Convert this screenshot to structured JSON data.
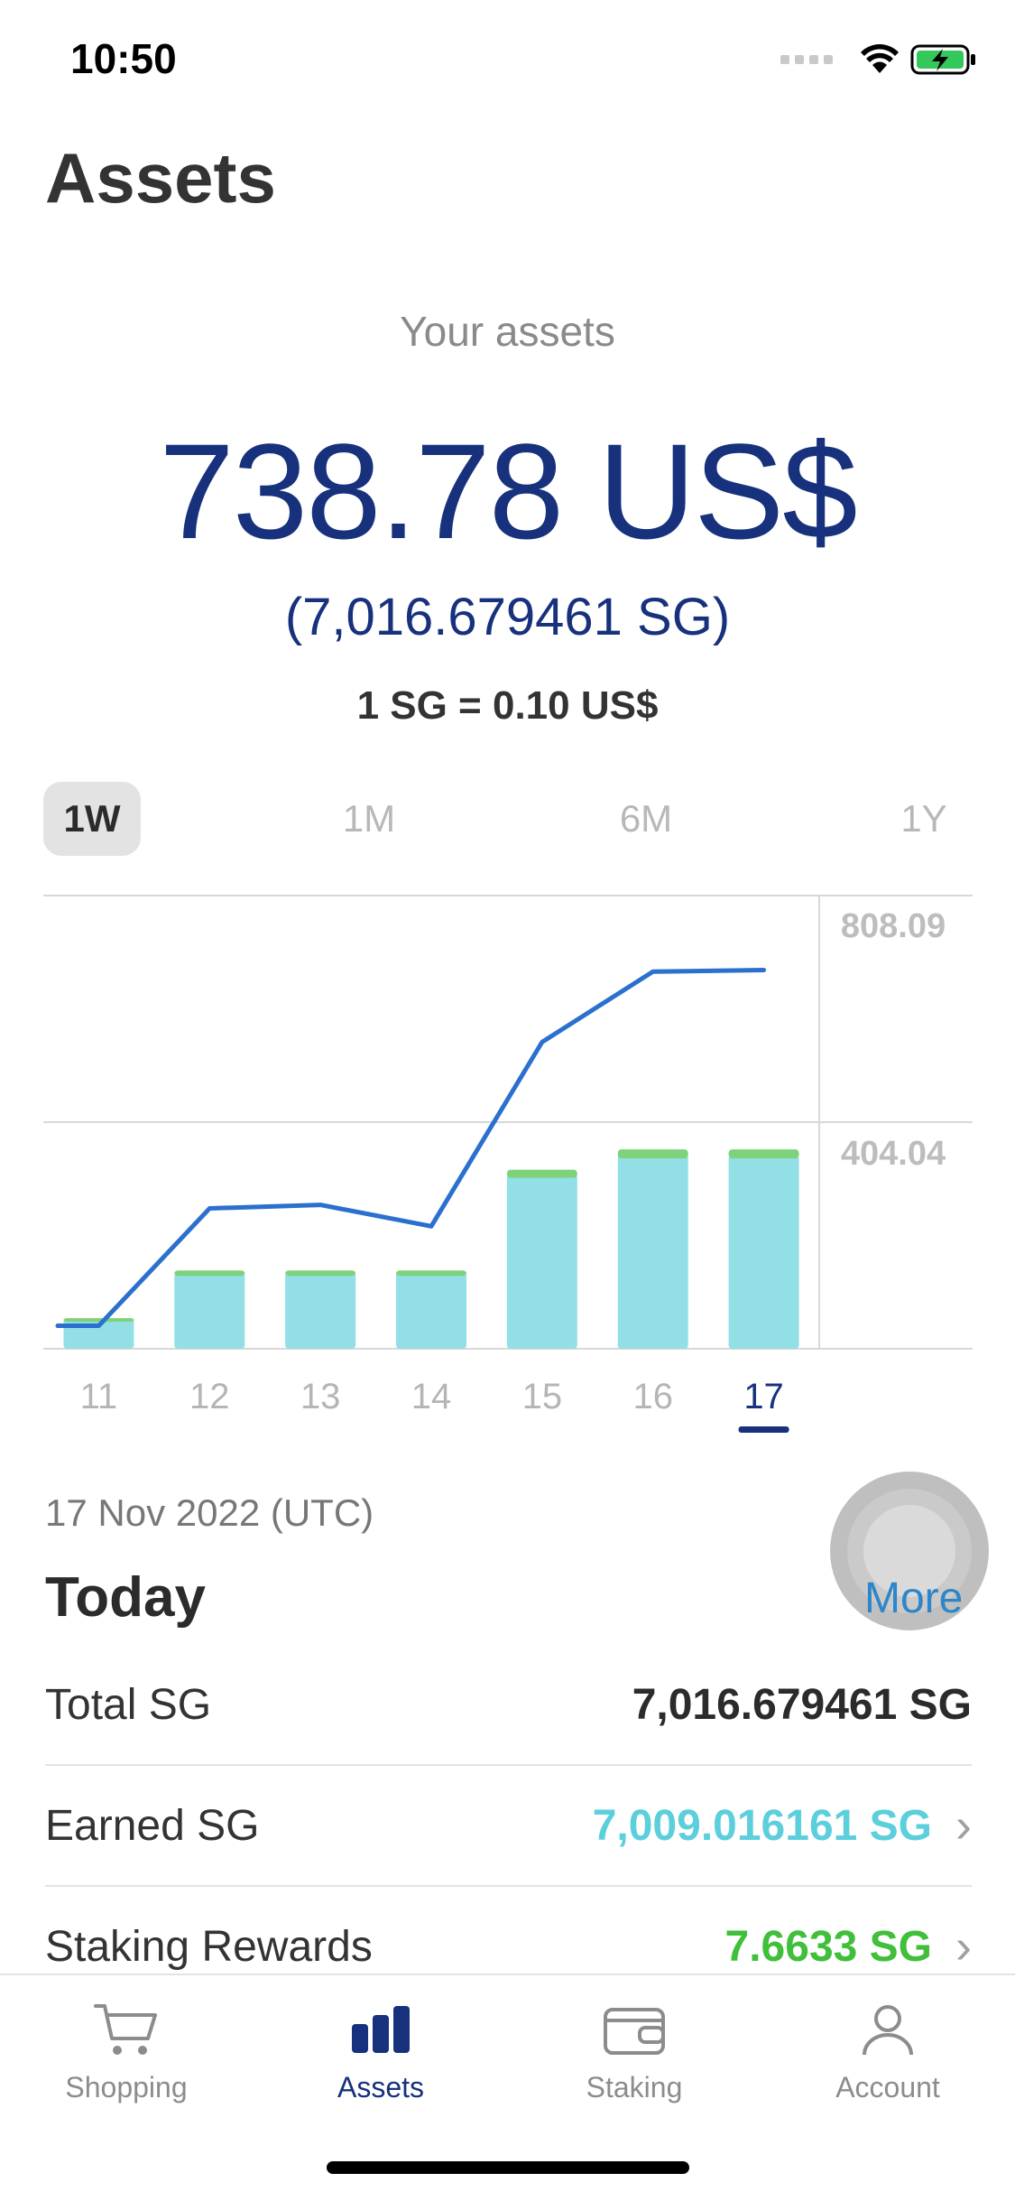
{
  "status_bar": {
    "time": "10:50"
  },
  "page_title": "Assets",
  "summary": {
    "label": "Your assets",
    "usd_value": "738.78 US$",
    "sg_value": "(7,016.679461 SG)",
    "rate": "1 SG = 0.10 US$"
  },
  "range_tabs": [
    {
      "label": "1W",
      "active": true
    },
    {
      "label": "1M",
      "active": false
    },
    {
      "label": "6M",
      "active": false
    },
    {
      "label": "1Y",
      "active": false
    }
  ],
  "chart_data": {
    "type": "bar",
    "categories": [
      "11",
      "12",
      "13",
      "14",
      "15",
      "16",
      "17"
    ],
    "selected_category": "17",
    "y_ticks": [
      "808.09",
      "404.04"
    ],
    "ylim": [
      0,
      808.09
    ],
    "series": [
      {
        "values": [
          60,
          150,
          150,
          150,
          342,
          380,
          380
        ],
        "color": "#92dfe6",
        "kind": "bar"
      },
      {
        "values": [
          2,
          4,
          4,
          4,
          7,
          8,
          8
        ],
        "color": "#7ed37a",
        "kind": "bar-cap"
      },
      {
        "values": [
          45,
          275,
          282,
          240,
          601,
          739,
          742
        ],
        "color": "#2b6fcf",
        "kind": "line"
      }
    ]
  },
  "today": {
    "date": "17 Nov 2022 (UTC)",
    "title": "Today",
    "more": "More",
    "rows": [
      {
        "label": "Total SG",
        "value": "7,016.679461 SG",
        "color": "#2b2b2b",
        "chevron": false
      },
      {
        "label": "Earned SG",
        "value": "7,009.016161 SG",
        "color": "#5ccfdc",
        "chevron": true
      },
      {
        "label": "Staking Rewards",
        "value": "7.6633 SG",
        "color": "#3fbf3a",
        "chevron": true
      }
    ]
  },
  "tab_bar": [
    {
      "label": "Shopping",
      "icon": "cart-icon",
      "active": false
    },
    {
      "label": "Assets",
      "icon": "bar-chart-icon",
      "active": true
    },
    {
      "label": "Staking",
      "icon": "wallet-icon",
      "active": false
    },
    {
      "label": "Account",
      "icon": "person-icon",
      "active": false
    }
  ],
  "colors": {
    "brand": "#17317d",
    "line": "#2b6fcf",
    "bar": "#92dfe6",
    "bar_cap": "#7ed37a"
  }
}
